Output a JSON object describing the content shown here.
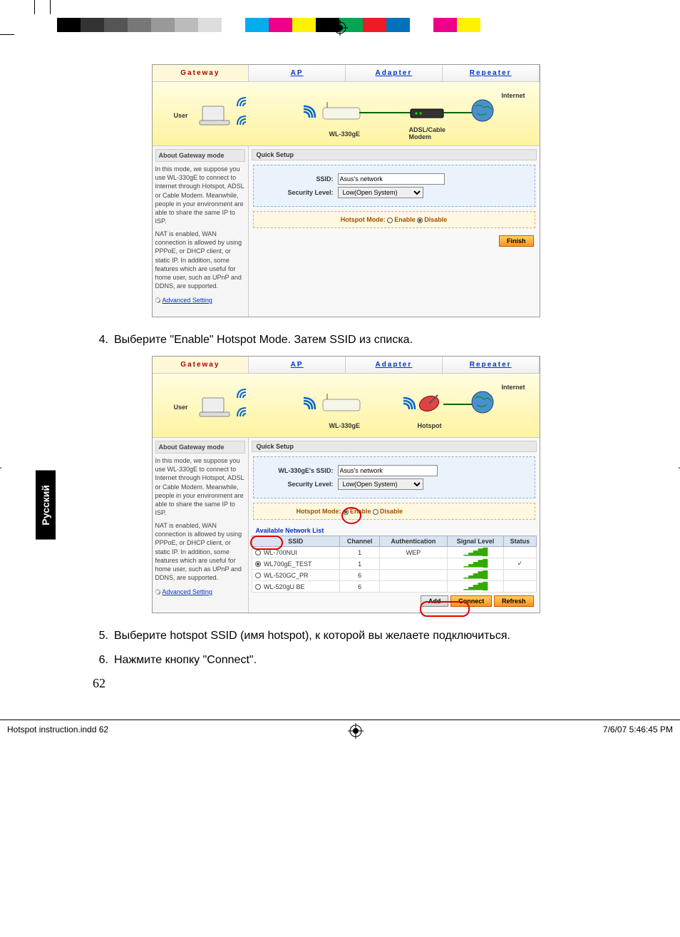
{
  "colorBar": [
    "#000000",
    "#333333",
    "#555555",
    "#777777",
    "#999999",
    "#bbbbbb",
    "#dddddd",
    "#ffffff",
    "#00aeef",
    "#ec008c",
    "#fff200",
    "#000000",
    "#00a651",
    "#ed1c24",
    "#0072bc",
    "#ffffff",
    "#ec008c",
    "#fff200"
  ],
  "tabs": [
    "Gateway",
    "AP",
    "Adapter",
    "Repeater"
  ],
  "diag1": {
    "user": "User",
    "device": "WL-330gE",
    "modem": "ADSL/Cable\nModem",
    "internet": "Internet"
  },
  "diag2": {
    "user": "User",
    "device": "WL-330gE",
    "hotspot": "Hotspot",
    "internet": "Internet"
  },
  "sidebar": {
    "title": "About Gateway mode",
    "p1": "In this mode, we suppose you use WL-330gE to connect to Internet through Hotspot, ADSL or Cable Modem. Meanwhile, people in your environment are able to share the same IP to ISP.",
    "p2": "NAT is enabled, WAN connection is allowed by using PPPoE, or DHCP client, or static IP. In addition, some features which are useful for home user, such as UPnP and DDNS, are supported.",
    "link": "Advanced Setting"
  },
  "panel1": {
    "title": "Quick Setup",
    "ssidLabel": "SSID:",
    "ssidValue": "Asus's network",
    "secLabel": "Security Level:",
    "secValue": "Low(Open System)",
    "hotspotLabel": "Hotspot Mode:",
    "enable": "Enable",
    "disable": "Disable",
    "finish": "Finish"
  },
  "panel2": {
    "title": "Quick Setup",
    "ssidLabel": "WL-330gE's SSID:",
    "ssidValue": "Asus's network",
    "secLabel": "Security Level:",
    "secValue": "Low(Open System)",
    "hotspotLabel": "Hotspot Mode:",
    "enable": "Enable",
    "disable": "Disable",
    "listTitle": "Available Network List",
    "cols": [
      "SSID",
      "Channel",
      "Authentication",
      "Signal Level",
      "Status"
    ],
    "rows": [
      {
        "ssid": "WL-700NUI",
        "ch": "1",
        "auth": "WEP",
        "sel": false,
        "status": ""
      },
      {
        "ssid": "WL700gE_TEST",
        "ch": "1",
        "auth": "",
        "sel": true,
        "status": "✓"
      },
      {
        "ssid": "WL-520GC_PR",
        "ch": "6",
        "auth": "",
        "sel": false,
        "status": ""
      },
      {
        "ssid": "WL-520gU BE",
        "ch": "6",
        "auth": "",
        "sel": false,
        "status": ""
      }
    ],
    "add": "Add",
    "connect": "Connect",
    "refresh": "Refresh"
  },
  "steps": {
    "s4n": "4.",
    "s4": "Выберите \"Enable\" Hotspot Mode. Затем SSID из списка.",
    "s5n": "5.",
    "s5": "Выберите hotspot SSID (имя hotspot), к которой вы желаете подключиться.",
    "s6n": "6.",
    "s6": "Нажмите кнопку \"Connect\"."
  },
  "langTab": "Русский",
  "pageNum": "62",
  "footer": {
    "left": "Hotspot instruction.indd   62",
    "right": "7/6/07   5:46:45 PM"
  }
}
